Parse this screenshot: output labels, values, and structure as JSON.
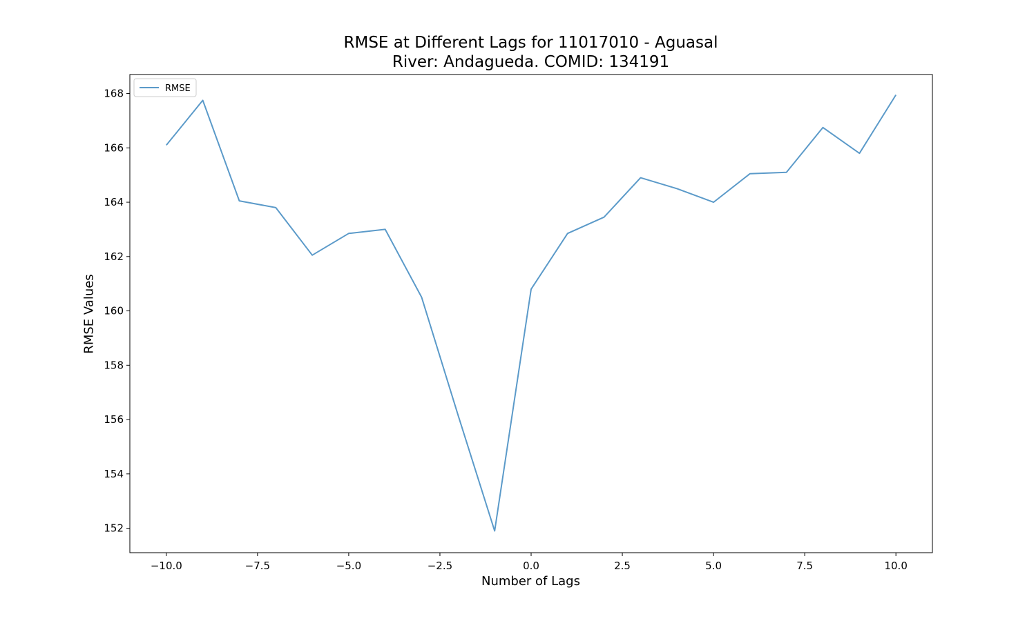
{
  "chart_data": {
    "type": "line",
    "title": "RMSE at Different Lags for 11017010 - Aguasal",
    "subtitle": "River: Andagueda. COMID: 134191",
    "xlabel": "Number of Lags",
    "ylabel": "RMSE Values",
    "xlim": [
      -11.0,
      11.0
    ],
    "ylim": [
      151.1,
      168.7
    ],
    "x_ticks": [
      -10.0,
      -7.5,
      -5.0,
      -2.5,
      0.0,
      2.5,
      5.0,
      7.5,
      10.0
    ],
    "x_tick_labels": [
      "−10.0",
      "−7.5",
      "−5.0",
      "−2.5",
      "0.0",
      "2.5",
      "5.0",
      "7.5",
      "10.0"
    ],
    "y_ticks": [
      152,
      154,
      156,
      158,
      160,
      162,
      164,
      166,
      168
    ],
    "y_tick_labels": [
      "152",
      "154",
      "156",
      "158",
      "160",
      "162",
      "164",
      "166",
      "168"
    ],
    "grid": false,
    "legend_position": "top-left",
    "series": [
      {
        "name": "RMSE",
        "color": "#5b9ac9",
        "x": [
          -10,
          -9,
          -8,
          -7,
          -6,
          -5,
          -4,
          -3,
          -2,
          -1,
          0,
          1,
          2,
          3,
          4,
          5,
          6,
          7,
          8,
          9,
          10
        ],
        "y": [
          166.1,
          167.75,
          164.05,
          163.8,
          162.05,
          162.85,
          163.0,
          160.5,
          156.15,
          151.9,
          160.8,
          162.85,
          163.45,
          164.9,
          164.5,
          164.0,
          165.05,
          165.1,
          166.75,
          165.8,
          167.95
        ]
      }
    ]
  }
}
